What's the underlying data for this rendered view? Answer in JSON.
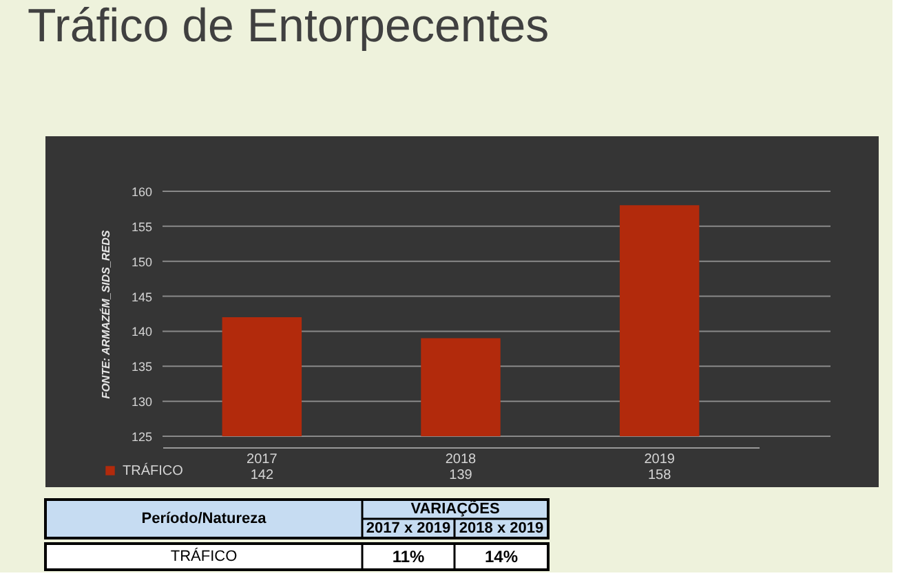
{
  "chart_data": {
    "type": "bar",
    "title": "Tráfico de Entorpecentes",
    "ylabel": "FONTE: ARMAZÉM_SIDS_REDS",
    "categories": [
      "2017",
      "2018",
      "2019"
    ],
    "series": [
      {
        "name": "TRÁFICO",
        "color": "#b22a0c",
        "values": [
          142,
          139,
          158
        ]
      }
    ],
    "ylim": [
      125,
      160
    ],
    "yticks": [
      125,
      130,
      135,
      140,
      145,
      150,
      155,
      160
    ],
    "grid": "y",
    "legend": "bottom left",
    "data_labels": true,
    "annotations": [
      "Período/Natureza",
      "VARIAÇÕES",
      "2017 x 2019",
      "2018 x 2019",
      "TRÁFICO",
      "11%",
      "14%"
    ]
  }
}
